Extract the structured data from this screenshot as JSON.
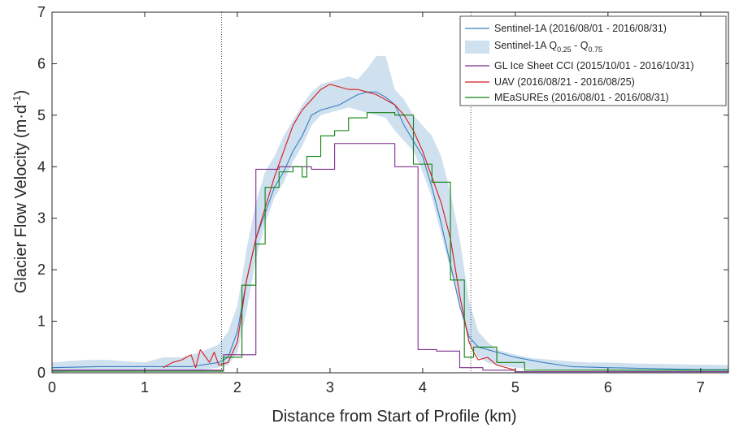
{
  "chart_data": {
    "type": "line",
    "xlabel": "Distance from Start of Profile (km)",
    "ylabel": "Glacier Flow Velocity (m·d",
    "ylabel_sup": "-1",
    "ylabel_close": ")",
    "xlim": [
      0,
      7.3
    ],
    "ylim": [
      0,
      7
    ],
    "xticks": [
      0,
      1,
      2,
      3,
      4,
      5,
      6,
      7
    ],
    "yticks": [
      0,
      1,
      2,
      3,
      4,
      5,
      6,
      7
    ],
    "vlines": [
      1.83,
      4.52
    ],
    "grid": false,
    "legend_position": "top-right",
    "band": {
      "name": "Sentinel-1A Q",
      "name_sub1": "0.25",
      "name_mid": " - Q",
      "name_sub2": "0.75",
      "color": "#cfe0ef",
      "x": [
        0,
        0.2,
        0.4,
        0.6,
        0.8,
        1.0,
        1.2,
        1.4,
        1.6,
        1.8,
        1.9,
        2.0,
        2.1,
        2.2,
        2.3,
        2.4,
        2.5,
        2.6,
        2.7,
        2.8,
        2.9,
        3.0,
        3.1,
        3.2,
        3.3,
        3.4,
        3.5,
        3.6,
        3.7,
        3.8,
        3.9,
        4.0,
        4.1,
        4.2,
        4.3,
        4.4,
        4.5,
        4.6,
        4.7,
        4.8,
        5.0,
        5.2,
        5.4,
        5.6,
        5.8,
        6.0,
        6.3,
        6.6,
        6.9,
        7.3
      ],
      "lo": [
        0.0,
        0.02,
        0.03,
        0.03,
        0.03,
        0.05,
        0.05,
        0.05,
        0.05,
        0.1,
        0.15,
        0.4,
        1.2,
        2.2,
        2.9,
        3.4,
        3.7,
        4.1,
        4.4,
        4.8,
        5.0,
        5.05,
        5.1,
        5.15,
        5.1,
        5.05,
        5.0,
        4.95,
        4.7,
        4.5,
        4.3,
        3.9,
        3.4,
        2.7,
        2.0,
        1.3,
        0.6,
        0.3,
        0.2,
        0.15,
        0.1,
        0.07,
        0.05,
        0.04,
        0.04,
        0.03,
        0.02,
        0.02,
        0.02,
        0.02
      ],
      "hi": [
        0.2,
        0.23,
        0.25,
        0.25,
        0.22,
        0.2,
        0.3,
        0.3,
        0.4,
        0.55,
        0.8,
        1.3,
        2.4,
        3.3,
        3.9,
        4.2,
        4.6,
        4.9,
        5.2,
        5.45,
        5.6,
        5.65,
        5.7,
        5.75,
        5.7,
        5.9,
        6.15,
        6.15,
        5.5,
        5.3,
        5.0,
        4.8,
        4.6,
        4.2,
        3.5,
        2.6,
        1.4,
        0.8,
        0.6,
        0.45,
        0.35,
        0.28,
        0.25,
        0.22,
        0.2,
        0.2,
        0.18,
        0.17,
        0.16,
        0.15
      ]
    },
    "series": [
      {
        "name": "Sentinel-1A (2016/08/01 - 2016/08/31)",
        "color": "#3a7fc1",
        "x": [
          0,
          0.5,
          1.0,
          1.5,
          1.8,
          1.9,
          2.0,
          2.1,
          2.2,
          2.3,
          2.4,
          2.5,
          2.6,
          2.7,
          2.8,
          2.9,
          3.0,
          3.1,
          3.2,
          3.3,
          3.4,
          3.5,
          3.6,
          3.7,
          3.8,
          3.9,
          4.0,
          4.1,
          4.2,
          4.3,
          4.4,
          4.5,
          4.6,
          4.7,
          4.8,
          5.0,
          5.3,
          5.6,
          6.0,
          6.5,
          7.0,
          7.3
        ],
        "y": [
          0.1,
          0.12,
          0.12,
          0.12,
          0.2,
          0.3,
          0.8,
          1.8,
          2.6,
          3.1,
          3.6,
          3.9,
          4.3,
          4.6,
          5.0,
          5.1,
          5.15,
          5.2,
          5.3,
          5.4,
          5.45,
          5.45,
          5.35,
          5.2,
          4.8,
          4.5,
          4.2,
          3.6,
          2.9,
          2.1,
          1.3,
          0.7,
          0.5,
          0.45,
          0.4,
          0.3,
          0.2,
          0.12,
          0.1,
          0.08,
          0.06,
          0.06
        ]
      },
      {
        "name": "GL Ice Sheet CCI (2015/10/01 - 2016/10/31)",
        "color": "#7e2f8e",
        "x": [
          0,
          1.4,
          1.85,
          1.85,
          2.2,
          2.2,
          2.45,
          2.45,
          2.8,
          2.8,
          3.05,
          3.05,
          3.7,
          3.7,
          3.95,
          3.95,
          4.15,
          4.15,
          4.4,
          4.4,
          4.65,
          4.65,
          5.0,
          5.0,
          7.3
        ],
        "y": [
          0.05,
          0.05,
          0.05,
          0.35,
          0.35,
          3.95,
          3.95,
          4.0,
          4.0,
          3.95,
          3.95,
          4.45,
          4.45,
          4.0,
          4.0,
          0.45,
          0.45,
          0.42,
          0.42,
          0.1,
          0.1,
          0.05,
          0.05,
          0.02,
          0.02
        ]
      },
      {
        "name": "UAV (2016/08/21 - 2016/08/25)",
        "color": "#d7191c",
        "x": [
          1.2,
          1.3,
          1.4,
          1.5,
          1.55,
          1.6,
          1.7,
          1.75,
          1.8,
          1.9,
          2.0,
          2.1,
          2.2,
          2.3,
          2.4,
          2.5,
          2.6,
          2.7,
          2.8,
          2.9,
          3.0,
          3.1,
          3.2,
          3.3,
          3.4,
          3.5,
          3.6,
          3.7,
          3.8,
          3.9,
          4.0,
          4.1,
          4.2,
          4.3,
          4.4,
          4.5,
          4.55,
          4.6,
          4.7,
          4.8,
          4.9,
          5.0
        ],
        "y": [
          0.1,
          0.2,
          0.25,
          0.35,
          0.1,
          0.45,
          0.2,
          0.4,
          0.15,
          0.2,
          0.6,
          1.8,
          2.6,
          3.2,
          3.8,
          4.3,
          4.8,
          5.1,
          5.3,
          5.5,
          5.6,
          5.55,
          5.5,
          5.5,
          5.45,
          5.4,
          5.3,
          5.2,
          5.0,
          4.7,
          4.3,
          3.8,
          3.3,
          2.6,
          1.5,
          0.6,
          0.4,
          0.25,
          0.3,
          0.15,
          0.1,
          0.05
        ]
      },
      {
        "name": "MEaSUREs (2016/08/01 - 2016/08/31)",
        "color": "#108010",
        "x": [
          0,
          1.5,
          1.85,
          1.85,
          2.05,
          2.05,
          2.2,
          2.2,
          2.3,
          2.3,
          2.45,
          2.45,
          2.6,
          2.6,
          2.7,
          2.7,
          2.75,
          2.75,
          2.9,
          2.9,
          3.05,
          3.05,
          3.2,
          3.2,
          3.4,
          3.4,
          3.7,
          3.7,
          3.9,
          3.9,
          4.1,
          4.1,
          4.3,
          4.3,
          4.45,
          4.45,
          4.55,
          4.55,
          4.8,
          4.8,
          5.1,
          5.1,
          7.3
        ],
        "y": [
          0.03,
          0.03,
          0.03,
          0.3,
          0.3,
          1.7,
          1.7,
          2.5,
          2.5,
          3.6,
          3.6,
          3.9,
          3.9,
          4.0,
          4.0,
          3.8,
          3.8,
          4.2,
          4.2,
          4.6,
          4.6,
          4.7,
          4.7,
          4.95,
          4.95,
          5.05,
          5.05,
          5.0,
          5.0,
          4.05,
          4.05,
          3.7,
          3.7,
          1.8,
          1.8,
          0.3,
          0.3,
          0.5,
          0.5,
          0.2,
          0.2,
          0.05,
          0.05
        ]
      }
    ]
  }
}
